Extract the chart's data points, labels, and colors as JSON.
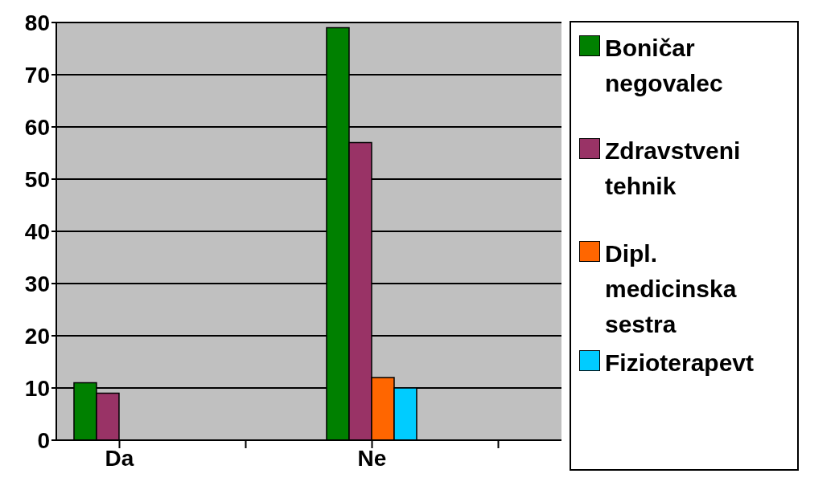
{
  "chart_data": {
    "type": "bar",
    "categories": [
      "Da",
      null,
      "Ne",
      null
    ],
    "series": [
      {
        "name": "Boničar negovalec",
        "color": "#008000",
        "values": [
          11,
          null,
          79,
          null
        ]
      },
      {
        "name": "Zdravstveni tehnik",
        "color": "#993366",
        "values": [
          9,
          null,
          57,
          null
        ]
      },
      {
        "name": "Dipl. medicinska sestra",
        "color": "#ff6600",
        "values": [
          0,
          null,
          12,
          null
        ]
      },
      {
        "name": "Fizioterapevt",
        "color": "#00ccff",
        "values": [
          0,
          null,
          10,
          null
        ]
      }
    ],
    "ylim": [
      0,
      80
    ],
    "yticks": [
      0,
      10,
      20,
      30,
      40,
      50,
      60,
      70,
      80
    ],
    "grid": "y",
    "legend": "right"
  }
}
